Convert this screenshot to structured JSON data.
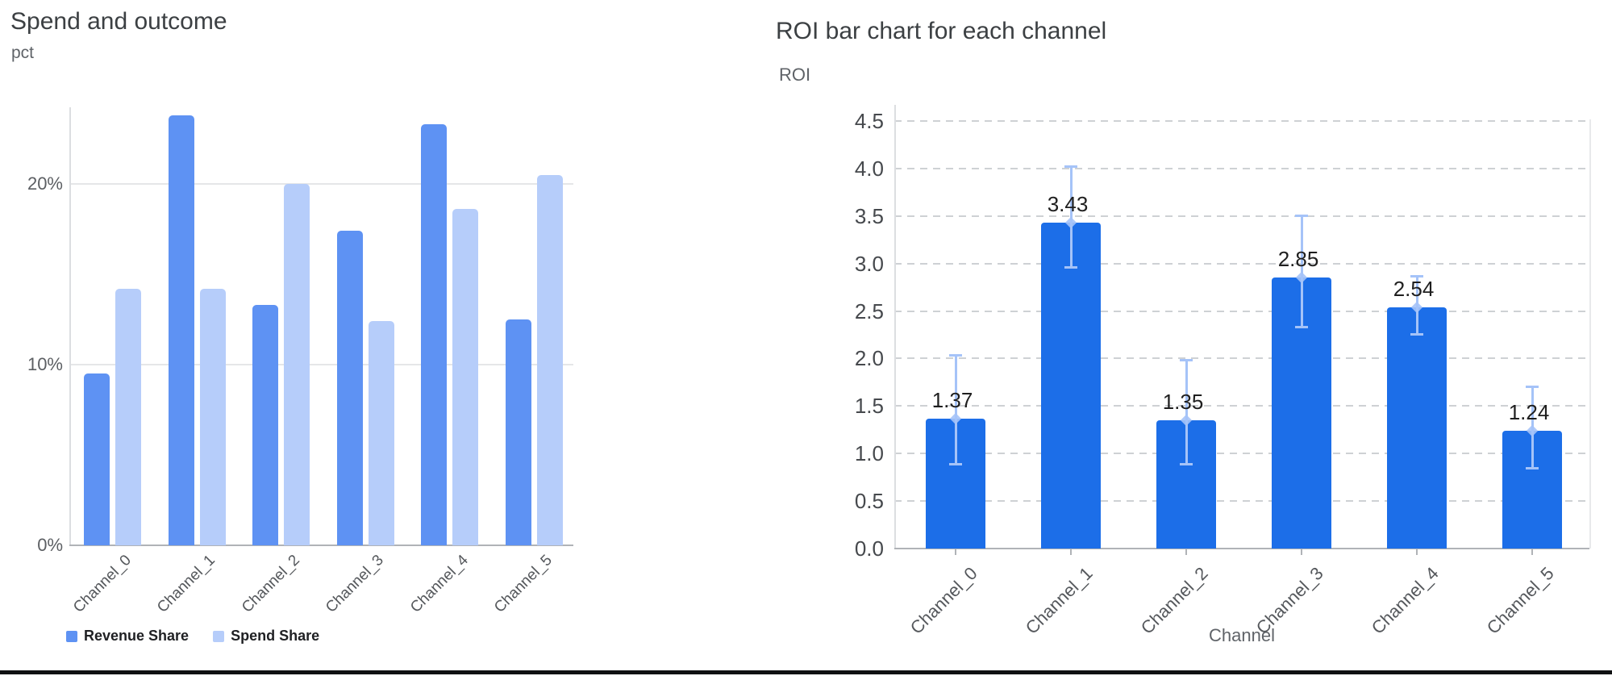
{
  "left_chart": {
    "title": "Spend and outcome",
    "y_unit_label": "pct"
  },
  "right_chart": {
    "title": "ROI bar chart for each channel",
    "y_axis_label": "ROI",
    "x_axis_label": "Channel"
  },
  "chart_data": [
    {
      "type": "bar",
      "title": "Spend and outcome",
      "ylabel": "pct",
      "categories": [
        "Channel_0",
        "Channel_1",
        "Channel_2",
        "Channel_3",
        "Channel_4",
        "Channel_5"
      ],
      "series": [
        {
          "name": "Revenue Share",
          "color": "#5e92f3",
          "values": [
            9.5,
            23.8,
            13.3,
            17.4,
            23.3,
            12.5
          ]
        },
        {
          "name": "Spend Share",
          "color": "#b6cdfa",
          "values": [
            14.2,
            14.2,
            20.0,
            12.4,
            18.6,
            20.5
          ]
        }
      ],
      "y_ticks": [
        {
          "value": 0,
          "label": "0%"
        },
        {
          "value": 10,
          "label": "10%"
        },
        {
          "value": 20,
          "label": "20%"
        }
      ],
      "ylim": [
        0,
        24.3
      ],
      "grid": "solid horizontal",
      "legend_position": "bottom-left"
    },
    {
      "type": "bar",
      "title": "ROI bar chart for each channel",
      "xlabel": "Channel",
      "ylabel": "ROI",
      "categories": [
        "Channel_0",
        "Channel_1",
        "Channel_2",
        "Channel_3",
        "Channel_4",
        "Channel_5"
      ],
      "values": [
        1.37,
        3.43,
        1.35,
        2.85,
        2.54,
        1.24
      ],
      "data_labels": [
        "1.37",
        "3.43",
        "1.35",
        "2.85",
        "2.54",
        "1.24"
      ],
      "error_low": [
        0.88,
        2.95,
        0.88,
        2.33,
        2.25,
        0.84
      ],
      "error_high": [
        2.04,
        4.02,
        1.99,
        3.51,
        2.87,
        1.71
      ],
      "y_ticks": [
        {
          "value": 0.0,
          "label": "0.0"
        },
        {
          "value": 0.5,
          "label": "0.5"
        },
        {
          "value": 1.0,
          "label": "1.0"
        },
        {
          "value": 1.5,
          "label": "1.5"
        },
        {
          "value": 2.0,
          "label": "2.0"
        },
        {
          "value": 2.5,
          "label": "2.5"
        },
        {
          "value": 3.0,
          "label": "3.0"
        },
        {
          "value": 3.5,
          "label": "3.5"
        },
        {
          "value": 4.0,
          "label": "4.0"
        },
        {
          "value": 4.5,
          "label": "4.5"
        }
      ],
      "ylim": [
        0,
        4.67
      ],
      "bar_color": "#1c6ee8",
      "error_bar_color": "#a5c3f8",
      "grid": "dashed horizontal"
    }
  ]
}
